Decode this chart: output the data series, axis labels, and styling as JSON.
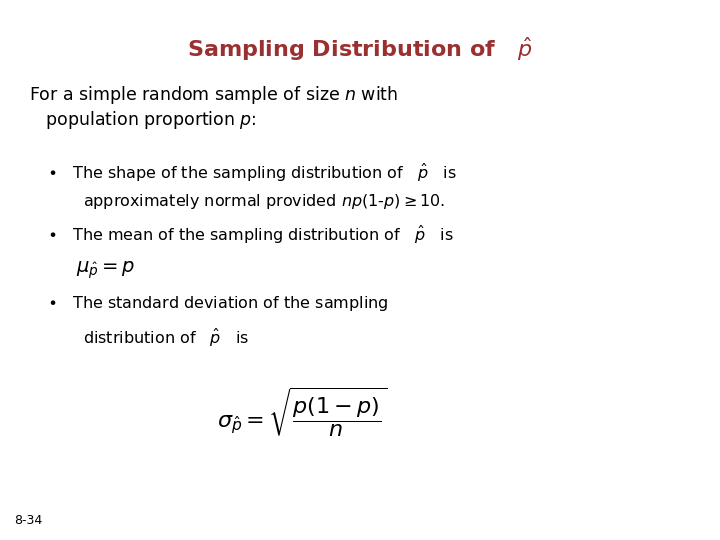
{
  "title_color": "#9B3030",
  "background_color": "#FFFFFF",
  "slide_number": "8-34",
  "title_fontsize": 16,
  "body_fontsize": 12.5,
  "bullet_fontsize": 11.5,
  "math_formula_fontsize": 16,
  "mu_fontsize": 14,
  "label_fontsize": 9
}
